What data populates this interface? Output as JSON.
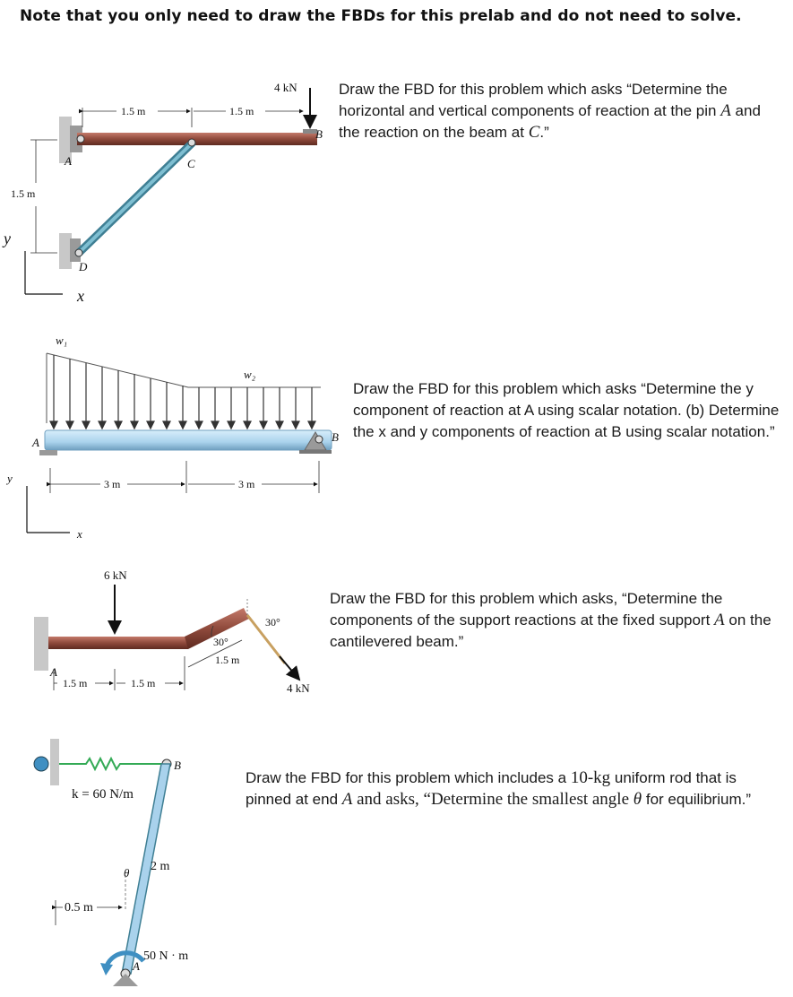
{
  "header": "Note that you only need to draw the FBDs for this prelab and do not need to solve.",
  "problems": [
    {
      "prompt_parts": [
        "Draw the FBD for this problem which asks “Determine the horizontal and vertical components of reaction at the pin ",
        "A",
        " and the reaction on the beam at ",
        "C",
        ".”"
      ],
      "figure": {
        "dims": [
          "1.5 m",
          "1.5 m",
          "1.5 m"
        ],
        "load": "4 kN",
        "points": [
          "A",
          "B",
          "C",
          "D"
        ],
        "axes": [
          "y",
          "x"
        ]
      }
    },
    {
      "prompt": "Draw the FBD for this problem which asks “Determine the y component of reaction at A using scalar notation. (b) Determine the x and y components of reaction at B using scalar notation.”",
      "figure": {
        "dims": [
          "3 m",
          "3 m"
        ],
        "loads": [
          "w₁",
          "w₂"
        ],
        "points": [
          "A",
          "B"
        ],
        "axes": [
          "y",
          "x"
        ]
      }
    },
    {
      "prompt_parts": [
        "Draw the FBD for this problem which asks, “Determine the components of the support reactions at the fixed support ",
        "A",
        " on the cantilevered beam.”"
      ],
      "figure": {
        "dims": [
          "1.5 m",
          "1.5 m",
          "1.5 m"
        ],
        "loads": [
          "6 kN",
          "4 kN"
        ],
        "angles": [
          "30°",
          "30°"
        ],
        "points": [
          "A"
        ]
      }
    },
    {
      "prompt_parts": [
        "Draw the FBD for this problem which includes a ",
        "10-kg",
        " uniform rod that is pinned at end ",
        "A",
        " and asks, “Determine the smallest angle ",
        "θ",
        " for equilibrium.”"
      ],
      "figure": {
        "spring": "k = 60 N/m",
        "dims": [
          "2 m",
          "0.5 m"
        ],
        "moment": "50 N · m",
        "angle": "θ",
        "points": [
          "A",
          "B"
        ]
      }
    }
  ],
  "colors": {
    "beam_red": "#8f4a3c",
    "beam_blue": "#a9d2ec",
    "rod_teal": "#5b9eb3",
    "wall_gray": "#b5b5b5",
    "moment_blue": "#3f8fc2"
  }
}
